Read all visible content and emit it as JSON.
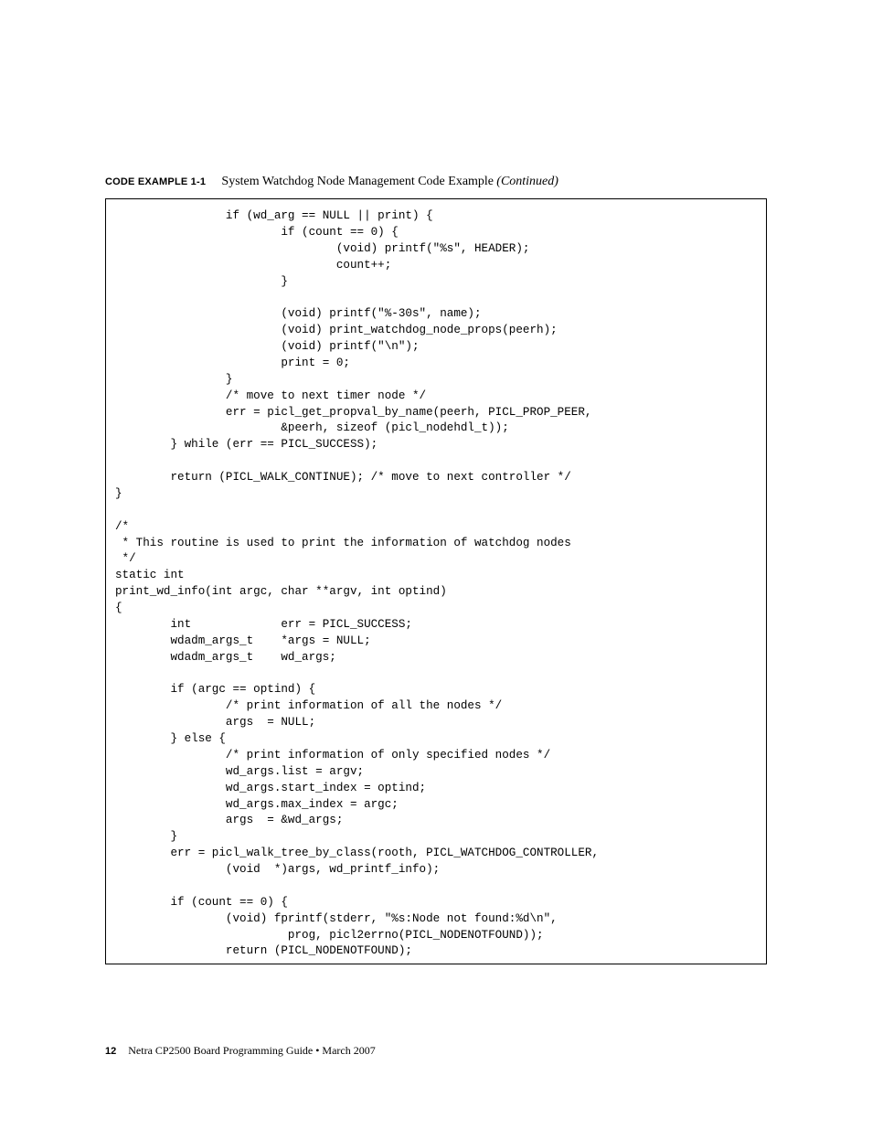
{
  "caption": {
    "label": "CODE EXAMPLE 1-1",
    "title": "System Watchdog Node Management Code Example",
    "continued": "(Continued)"
  },
  "code": "                if (wd_arg == NULL || print) {\n                        if (count == 0) {\n                                (void) printf(\"%s\", HEADER);\n                                count++;\n                        }\n\n                        (void) printf(\"%-30s\", name);\n                        (void) print_watchdog_node_props(peerh);\n                        (void) printf(\"\\n\");\n                        print = 0;\n                }\n                /* move to next timer node */\n                err = picl_get_propval_by_name(peerh, PICL_PROP_PEER,\n                        &peerh, sizeof (picl_nodehdl_t));\n        } while (err == PICL_SUCCESS);\n\n        return (PICL_WALK_CONTINUE); /* move to next controller */\n}\n\n/*\n * This routine is used to print the information of watchdog nodes\n */\nstatic int\nprint_wd_info(int argc, char **argv, int optind)\n{\n        int             err = PICL_SUCCESS;\n        wdadm_args_t    *args = NULL;\n        wdadm_args_t    wd_args;\n\n        if (argc == optind) {\n                /* print information of all the nodes */\n                args  = NULL;\n        } else {\n                /* print information of only specified nodes */\n                wd_args.list = argv;\n                wd_args.start_index = optind;\n                wd_args.max_index = argc;\n                args  = &wd_args;\n        }\n        err = picl_walk_tree_by_class(rooth, PICL_WATCHDOG_CONTROLLER,\n                (void  *)args, wd_printf_info);\n\n        if (count == 0) {\n                (void) fprintf(stderr, \"%s:Node not found:%d\\n\",\n                         prog, picl2errno(PICL_NODENOTFOUND));\n                return (PICL_NODENOTFOUND);",
  "footer": {
    "page_number": "12",
    "doc_title": "Netra CP2500 Board Programming Guide • March 2007"
  },
  "colors": {
    "text": "#000000",
    "background": "#ffffff",
    "border": "#000000"
  },
  "typography": {
    "code_font": "Courier New",
    "code_fontsize": 12.6,
    "caption_label_font": "Arial",
    "caption_label_fontsize": 11,
    "caption_title_font": "Times New Roman",
    "caption_title_fontsize": 14,
    "footer_fontsize": 12
  }
}
